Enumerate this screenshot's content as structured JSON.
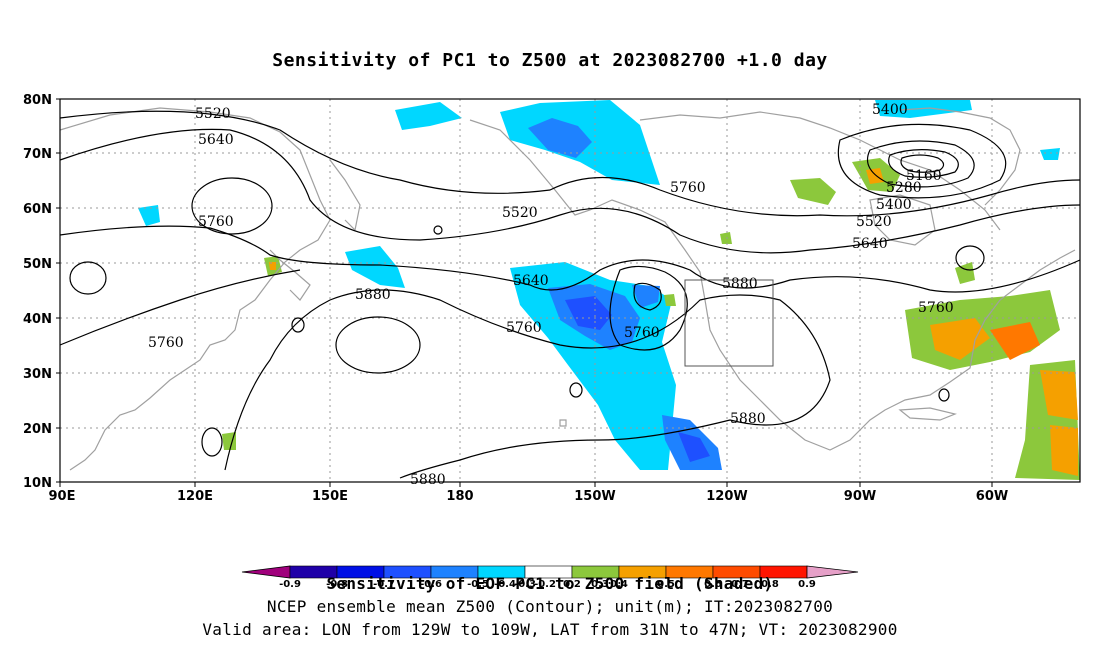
{
  "title": "Sensitivity of PC1 to Z500 at 2023082700 +1.0 day",
  "caption": {
    "line1": "Sensitivity of EOF PC1 to Z500 field (Shaded)",
    "line2": "NCEP ensemble mean Z500 (Contour); unit(m); IT:2023082700",
    "line3": "Valid area: LON from 129W to 109W, LAT from 31N to 47N; VT: 2023082900"
  },
  "lat_ticks": [
    "80N",
    "70N",
    "60N",
    "50N",
    "40N",
    "30N",
    "20N",
    "10N"
  ],
  "lon_ticks": [
    "90E",
    "120E",
    "150E",
    "180",
    "150W",
    "120W",
    "90W",
    "60W"
  ],
  "colorbar": {
    "labels": [
      "-0.9",
      "-0.8",
      "-0.7",
      "-0.6",
      "-0.5",
      "-0.4",
      "-0.3",
      "-0.2",
      "0.2",
      "0.3",
      "0.4",
      "0.5",
      "0.6",
      "0.7",
      "0.8",
      "0.9"
    ],
    "colors": [
      "#a0007c",
      "#1f00a8",
      "#0010e6",
      "#1e50ff",
      "#1e82ff",
      "#00b4ff",
      "#00d7ff",
      "#ffffff",
      "#8cc83c",
      "#f5a000",
      "#ff7800",
      "#ff4b00",
      "#ff1400",
      "#e6a0c8"
    ]
  },
  "contour_labels": [
    {
      "id": "c1",
      "text": "5520"
    },
    {
      "id": "c2",
      "text": "5640"
    },
    {
      "id": "c3",
      "text": "5760"
    },
    {
      "id": "c4",
      "text": "5760"
    },
    {
      "id": "c5",
      "text": "5880"
    },
    {
      "id": "c6",
      "text": "5520"
    },
    {
      "id": "c7",
      "text": "5760"
    },
    {
      "id": "c8",
      "text": "5640"
    },
    {
      "id": "c9",
      "text": "5760"
    },
    {
      "id": "c10",
      "text": "5760"
    },
    {
      "id": "c11",
      "text": "5880"
    },
    {
      "id": "c12",
      "text": "5880"
    },
    {
      "id": "c13",
      "text": "5880"
    },
    {
      "id": "c14",
      "text": "5400"
    },
    {
      "id": "c15",
      "text": "5160"
    },
    {
      "id": "c16",
      "text": "5280"
    },
    {
      "id": "c17",
      "text": "5400"
    },
    {
      "id": "c18",
      "text": "5520"
    },
    {
      "id": "c19",
      "text": "5640"
    },
    {
      "id": "c20",
      "text": "5760"
    }
  ],
  "colors": {
    "blue_dark": "#1e50ff",
    "blue": "#1e82ff",
    "blue_light": "#00b4ff",
    "cyan": "#00d7ff",
    "green": "#8cc83c",
    "orange": "#f5a000",
    "orange_dark": "#ff7800",
    "coast": "#a0a0a0"
  }
}
